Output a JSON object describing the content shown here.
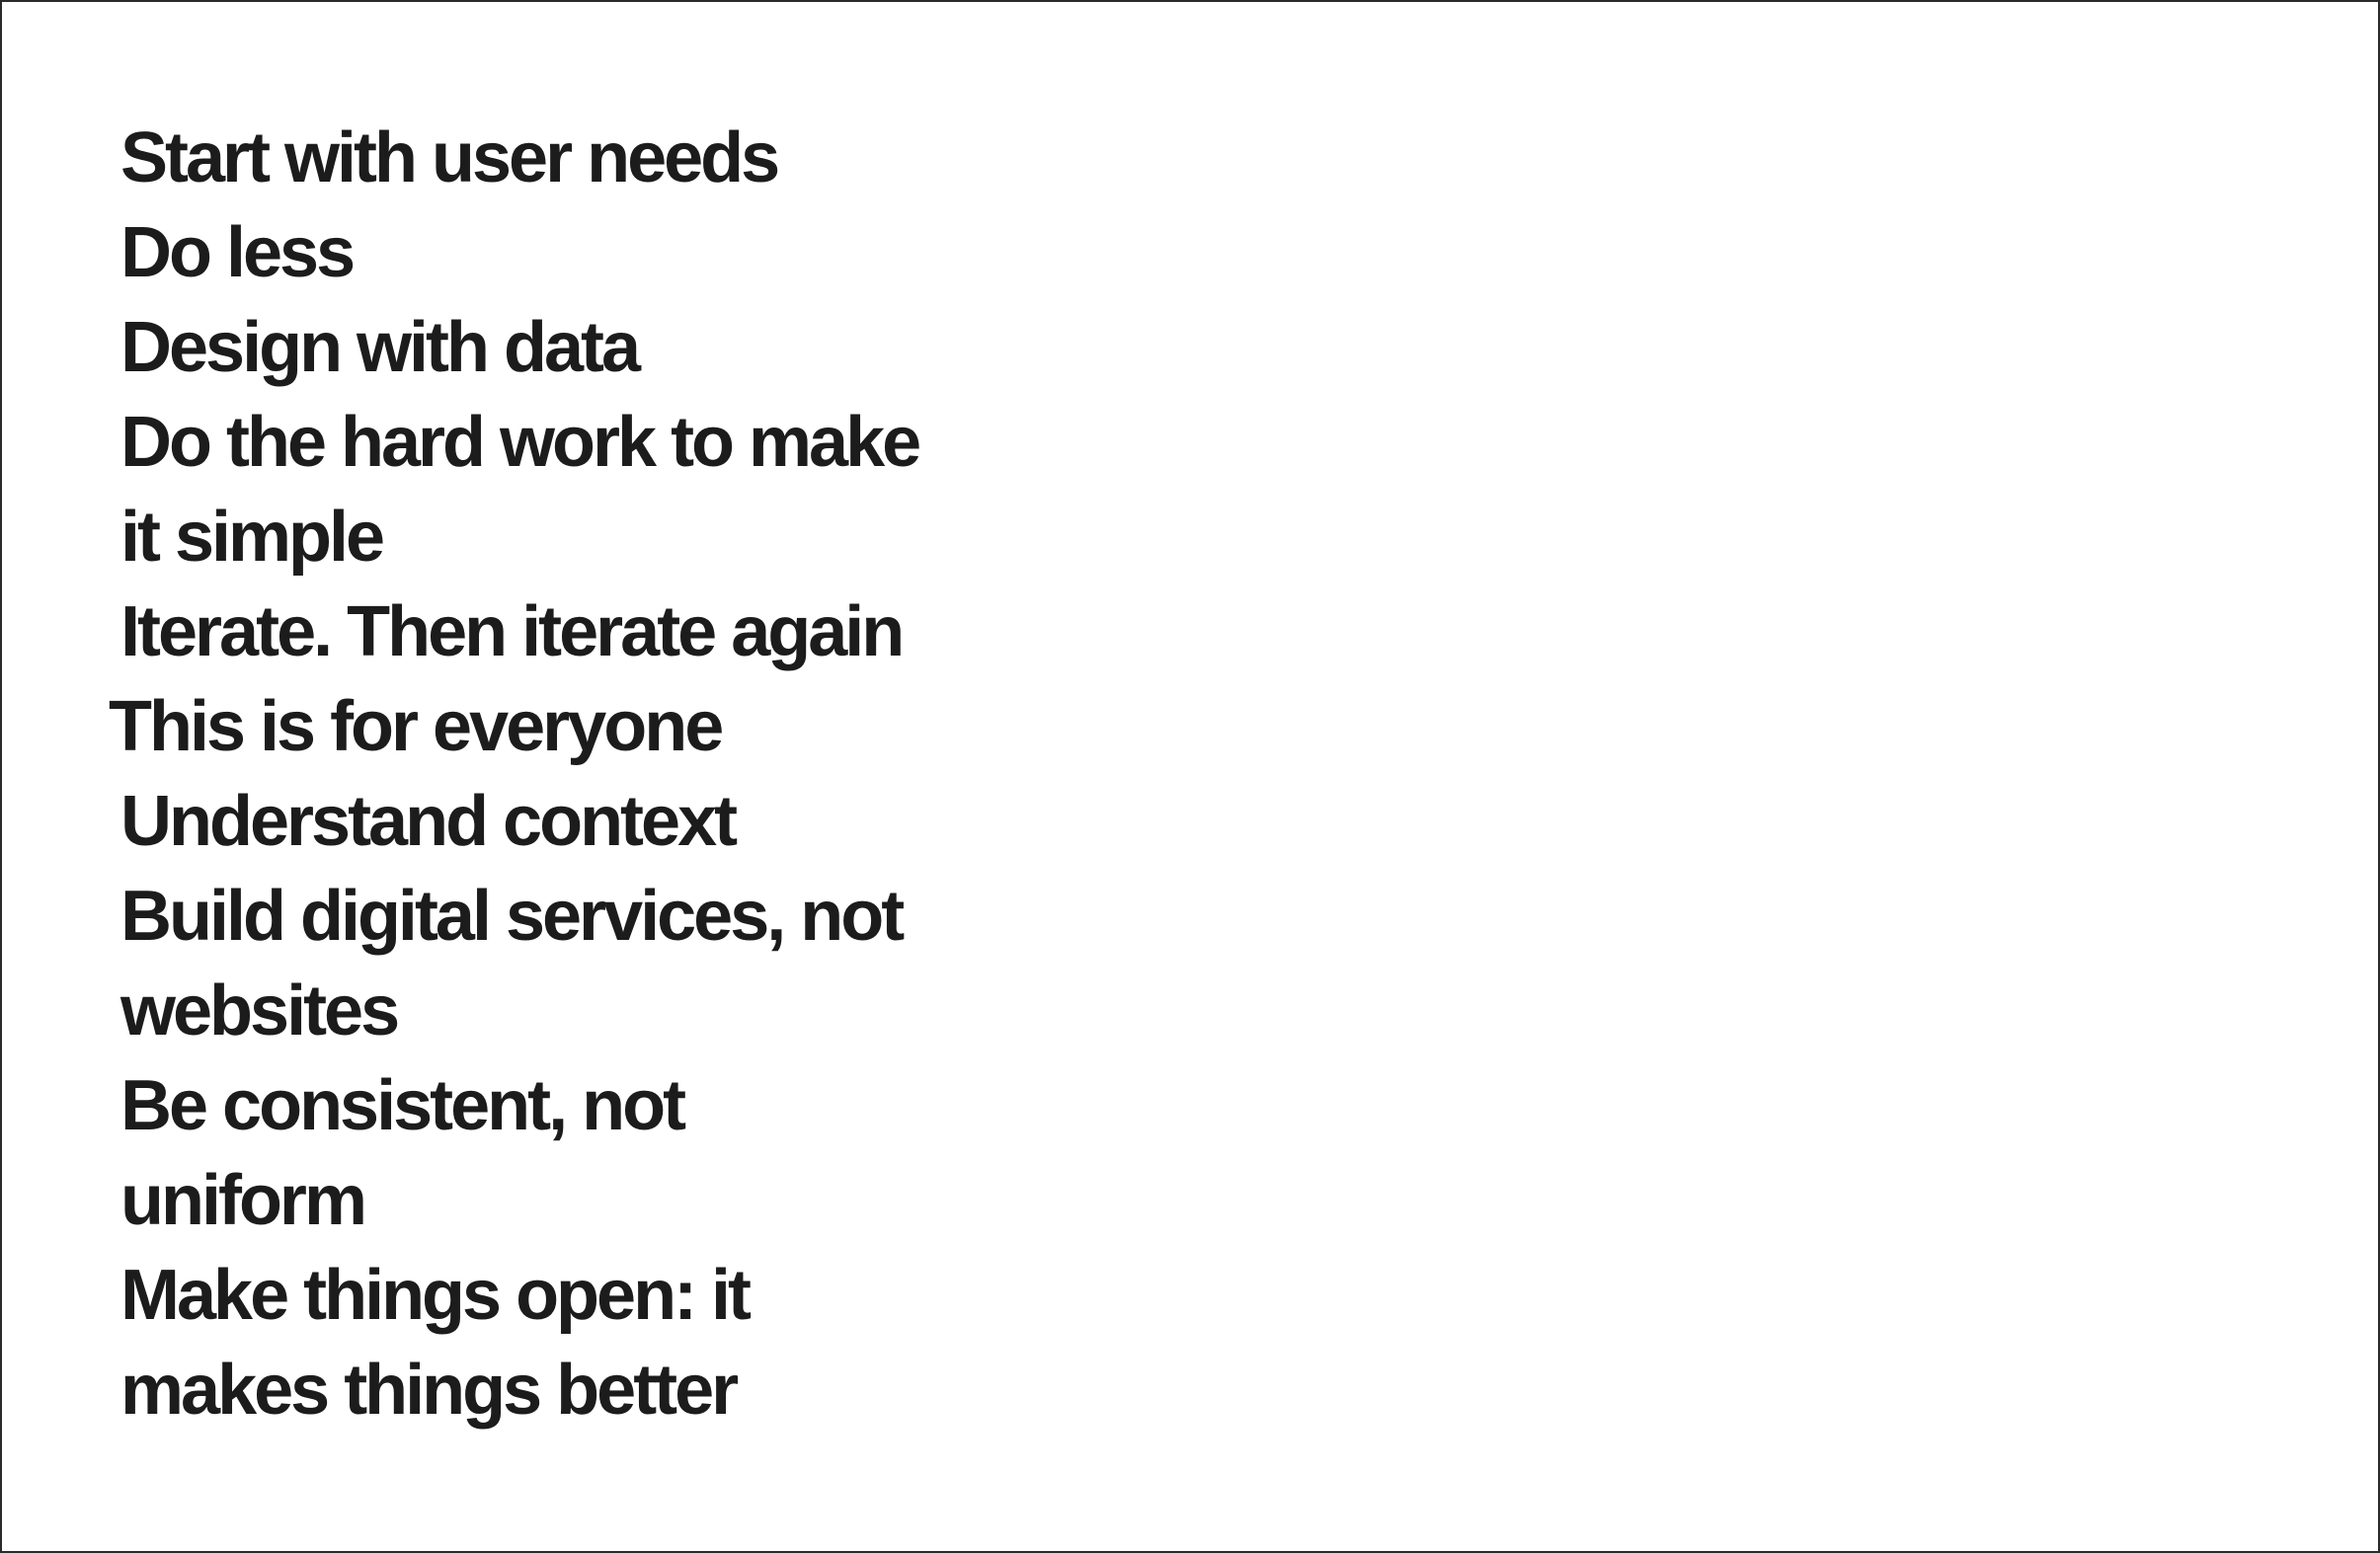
{
  "principles": [
    "Start with user needs",
    "Do less",
    "Design with data",
    "Do the hard work to make",
    "it simple",
    "Iterate. Then iterate again",
    "This is for everyone",
    "Understand context",
    "Build digital services, not",
    "websites",
    "Be consistent, not",
    "uniform",
    "Make things open: it",
    "makes things better"
  ]
}
